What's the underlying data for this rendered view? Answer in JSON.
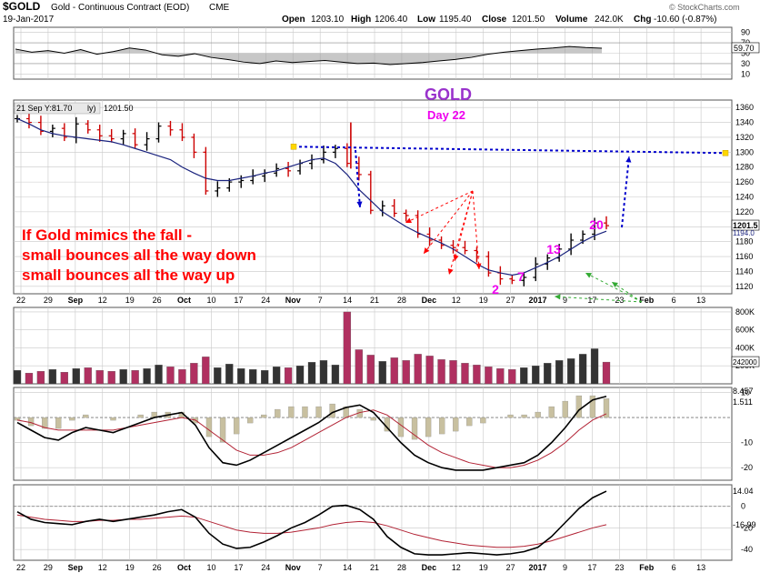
{
  "header": {
    "symbol": "$GOLD",
    "name": "Gold - Continuous Contract (EOD)",
    "exchange": "CME",
    "date": "19-Jan-2017",
    "open_label": "Open",
    "open": "1203.10",
    "high_label": "High",
    "high": "1206.40",
    "low_label": "Low",
    "low": "1195.40",
    "close_label": "Close",
    "close": "1201.50",
    "volume_label": "Volume",
    "volume": "242.0K",
    "chg_label": "Chg",
    "chg": "-10.60 (-0.87%)",
    "brand": "© StockCharts.com"
  },
  "chart_data": [
    {
      "type": "line",
      "panel": "rsi",
      "ylim": [
        0,
        100
      ],
      "yticks": [
        "90",
        "70",
        "50",
        "30",
        "10"
      ],
      "last_value_label": "59.70",
      "series": [
        {
          "values": [
            58,
            52,
            55,
            50,
            57,
            48,
            53,
            60,
            56,
            47,
            44,
            49,
            42,
            38,
            33,
            30,
            35,
            32,
            34,
            36,
            33,
            30,
            31,
            28,
            30,
            32,
            35,
            38,
            42,
            48,
            52,
            55,
            58,
            60,
            63,
            61,
            59.7
          ]
        }
      ]
    },
    {
      "type": "line",
      "panel": "price",
      "ylim": [
        1110,
        1370
      ],
      "yticks": [
        "1360",
        "1340",
        "1320",
        "1300",
        "1280",
        "1260",
        "1240",
        "1220",
        "1200",
        "1180",
        "1160",
        "1140",
        "1120"
      ],
      "hover_label": "21 Sep Y:81.70",
      "last_value_label": "1201.5",
      "last_price_label": "1201.50",
      "price_series_label": "ly)",
      "ma_label": "1194.0",
      "ma": [
        1345,
        1338,
        1330,
        1325,
        1322,
        1320,
        1318,
        1316,
        1314,
        1310,
        1305,
        1300,
        1295,
        1290,
        1280,
        1272,
        1265,
        1262,
        1262,
        1265,
        1268,
        1272,
        1275,
        1280,
        1285,
        1290,
        1292,
        1285,
        1270,
        1250,
        1235,
        1220,
        1210,
        1200,
        1192,
        1185,
        1178,
        1170,
        1160,
        1150,
        1142,
        1138,
        1135,
        1138,
        1145,
        1152,
        1160,
        1170,
        1180,
        1188,
        1194
      ],
      "close": [
        1345,
        1340,
        1328,
        1332,
        1320,
        1338,
        1330,
        1322,
        1318,
        1325,
        1310,
        1318,
        1335,
        1330,
        1320,
        1300,
        1248,
        1252,
        1260,
        1262,
        1268,
        1272,
        1278,
        1275,
        1285,
        1290,
        1300,
        1305,
        1285,
        1270,
        1222,
        1228,
        1218,
        1215,
        1190,
        1182,
        1175,
        1172,
        1168,
        1160,
        1138,
        1130,
        1128,
        1132,
        1150,
        1158,
        1170,
        1182,
        1190,
        1205,
        1201.5
      ],
      "annotations": {
        "title": "GOLD",
        "subtitle": "Day 22",
        "note": [
          "If Gold mimics the fall -",
          "small bounces all the way down",
          "small bounces all the way up"
        ],
        "counts": [
          "2",
          "7",
          "13",
          "20"
        ]
      }
    },
    {
      "type": "bar",
      "panel": "volume",
      "yticks": [
        "800K",
        "600K",
        "400K",
        "200K"
      ],
      "last_value_label": "242000",
      "values": [
        150,
        120,
        140,
        160,
        130,
        170,
        180,
        150,
        140,
        160,
        150,
        170,
        210,
        190,
        160,
        230,
        300,
        180,
        220,
        170,
        160,
        150,
        190,
        180,
        200,
        240,
        260,
        210,
        800,
        380,
        320,
        250,
        290,
        260,
        330,
        310,
        270,
        260,
        230,
        210,
        190,
        170,
        160,
        180,
        200,
        230,
        260,
        280,
        330,
        390,
        242
      ]
    },
    {
      "type": "line",
      "panel": "macd",
      "yticks": [
        "10",
        "-10",
        "-20"
      ],
      "last_value_label": "8.457",
      "signal_label": "1.511",
      "series": [
        {
          "values": [
            -2,
            -5,
            -8,
            -9,
            -6,
            -4,
            -5,
            -6,
            -4,
            -2,
            0,
            1,
            2,
            -3,
            -12,
            -18,
            -19,
            -17,
            -14,
            -11,
            -8,
            -5,
            -2,
            2,
            4,
            5,
            2,
            -4,
            -10,
            -15,
            -18,
            -20,
            -21,
            -21,
            -21,
            -20,
            -19,
            -18,
            -15,
            -10,
            -4,
            3,
            7,
            8.457
          ]
        },
        {
          "values": [
            -1,
            -2,
            -4,
            -5,
            -5,
            -5,
            -5,
            -5,
            -4,
            -3,
            -2,
            -1,
            0,
            -1,
            -5,
            -9,
            -13,
            -15,
            -15,
            -14,
            -12,
            -9,
            -6,
            -3,
            0,
            2,
            3,
            1,
            -3,
            -7,
            -11,
            -14,
            -16,
            -18,
            -19,
            -20,
            -20,
            -19,
            -17,
            -14,
            -10,
            -5,
            -1,
            1.511
          ]
        }
      ]
    },
    {
      "type": "line",
      "panel": "oscillator",
      "yticks": [
        "0",
        "-20",
        "-40"
      ],
      "last_value_label": "14.04",
      "signal_label": "-16.99",
      "series": [
        {
          "values": [
            -5,
            -12,
            -15,
            -16,
            -17,
            -14,
            -12,
            -14,
            -12,
            -10,
            -8,
            -5,
            -3,
            -10,
            -25,
            -35,
            -39,
            -38,
            -33,
            -27,
            -20,
            -15,
            -8,
            0,
            1,
            -3,
            -12,
            -28,
            -38,
            -44,
            -45,
            -45,
            -44,
            -43,
            -44,
            -45,
            -44,
            -42,
            -38,
            -28,
            -15,
            -2,
            8,
            14.04
          ]
        },
        {
          "values": [
            -8,
            -10,
            -12,
            -13,
            -14,
            -14,
            -13,
            -13,
            -12,
            -12,
            -11,
            -10,
            -9,
            -10,
            -14,
            -18,
            -22,
            -24,
            -25,
            -25,
            -24,
            -22,
            -20,
            -17,
            -15,
            -14,
            -15,
            -18,
            -22,
            -26,
            -29,
            -32,
            -34,
            -36,
            -37,
            -38,
            -38,
            -37,
            -35,
            -32,
            -28,
            -24,
            -20,
            -16.99
          ]
        }
      ]
    }
  ],
  "x_axis": {
    "labels": [
      "22",
      "29",
      "Sep",
      "12",
      "19",
      "26",
      "Oct",
      "10",
      "17",
      "24",
      "Nov",
      "7",
      "14",
      "21",
      "28",
      "Dec",
      "12",
      "19",
      "27",
      "2017",
      "9",
      "17",
      "23",
      "Feb",
      "6",
      "13"
    ]
  },
  "colors": {
    "background": "#ffffff",
    "grid": "#c8c8c8",
    "up_bar": "#000000",
    "down_bar": "#cc0000",
    "moving_average": "#1a237e",
    "volume_up": "#333333",
    "volume_down": "#b03060",
    "macd_histogram": "#c8c0a0",
    "annotation_magenta": "#ee00ee",
    "annotation_purple": "#9932cc",
    "annotation_red": "#ff0000",
    "annotation_blue": "#0000cc",
    "annotation_green": "#33aa33"
  }
}
